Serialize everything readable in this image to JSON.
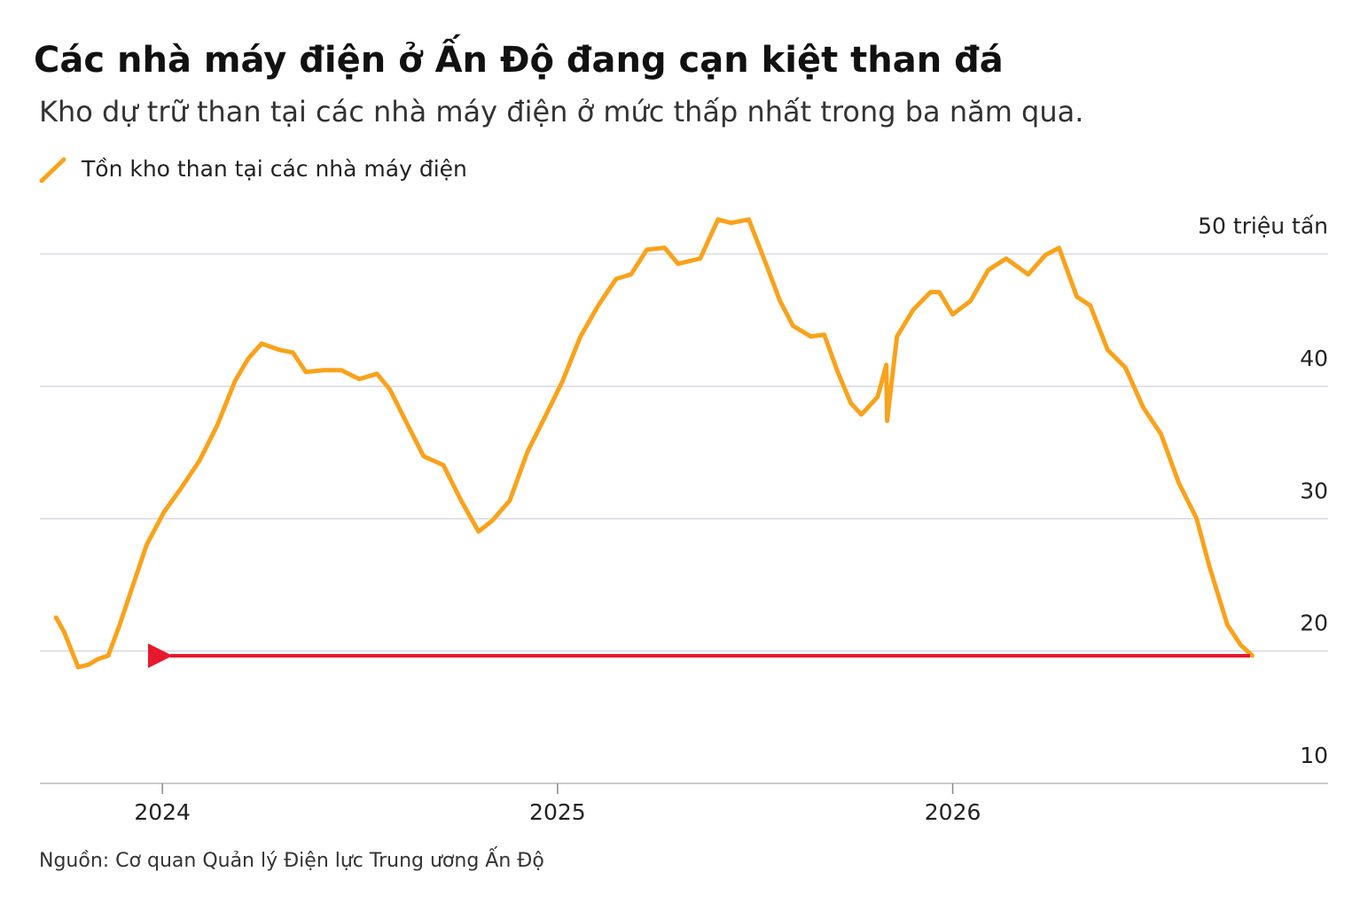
{
  "chart_data": {
    "type": "line",
    "title": "Các nhà máy điện ở Ấn Độ đang cạn kiệt than đá",
    "subtitle": "Kho dự trữ than tại các nhà máy điện ở mức thấp nhất trong ba năm qua.",
    "source": "Nguồn: Cơ quan Quản lý Điện lực Trung ương Ấn Độ",
    "x": [
      2023.731,
      2023.751,
      2023.787,
      2023.814,
      2023.836,
      2023.863,
      2023.892,
      2023.926,
      2023.96,
      2024.004,
      2024.049,
      2024.094,
      2024.139,
      2024.184,
      2024.217,
      2024.251,
      2024.296,
      2024.33,
      2024.363,
      2024.408,
      2024.453,
      2024.498,
      2024.543,
      2024.576,
      2024.621,
      2024.661,
      2024.711,
      2024.756,
      2024.8,
      2024.834,
      2024.879,
      2024.924,
      2024.969,
      2025.013,
      2025.058,
      2025.103,
      2025.148,
      2025.186,
      2025.226,
      2025.271,
      2025.305,
      2025.361,
      2025.406,
      2025.439,
      2025.484,
      2025.529,
      2025.563,
      2025.596,
      2025.641,
      2025.675,
      2025.709,
      2025.742,
      2025.769,
      2025.81,
      2025.832,
      2025.834,
      2025.859,
      2025.9,
      2025.944,
      2025.966,
      2026.0,
      2026.045,
      2026.09,
      2026.135,
      2026.191,
      2026.235,
      2026.269,
      2026.314,
      2026.348,
      2026.392,
      2026.437,
      2026.482,
      2026.527,
      2026.572,
      2026.617,
      2026.65,
      2026.695,
      2026.729,
      2026.758
    ],
    "series": [
      {
        "name": "Tồn kho than tại các nhà máy điện",
        "color": "#f9a21b",
        "values": [
          22.53,
          21.46,
          18.78,
          18.98,
          19.38,
          19.65,
          21.99,
          25.01,
          28.02,
          30.5,
          32.38,
          34.39,
          37.07,
          40.42,
          42.09,
          43.23,
          42.76,
          42.56,
          41.09,
          41.22,
          41.22,
          40.55,
          40.95,
          39.75,
          37.07,
          34.72,
          34.05,
          31.37,
          29.03,
          29.83,
          31.37,
          35.06,
          37.74,
          40.42,
          43.77,
          46.11,
          48.12,
          48.46,
          50.33,
          50.47,
          49.26,
          49.66,
          52.61,
          52.35,
          52.61,
          49.13,
          46.45,
          44.57,
          43.77,
          43.9,
          41.09,
          38.74,
          37.87,
          39.21,
          41.62,
          37.4,
          43.77,
          45.78,
          47.12,
          47.12,
          45.44,
          46.45,
          48.79,
          49.66,
          48.46,
          49.93,
          50.47,
          46.78,
          46.11,
          42.76,
          41.42,
          38.41,
          36.4,
          32.71,
          30.03,
          26.35,
          21.99,
          20.45,
          19.65
        ]
      }
    ],
    "xlim": [
      2023.69,
      2026.95
    ],
    "xticks": [
      2024,
      2025,
      2026
    ],
    "ylim": [
      10,
      55
    ],
    "yticks": [
      10,
      20,
      30,
      40,
      {
        "value": 50,
        "label": "50 triệu tấn"
      }
    ],
    "grid": true
  }
}
